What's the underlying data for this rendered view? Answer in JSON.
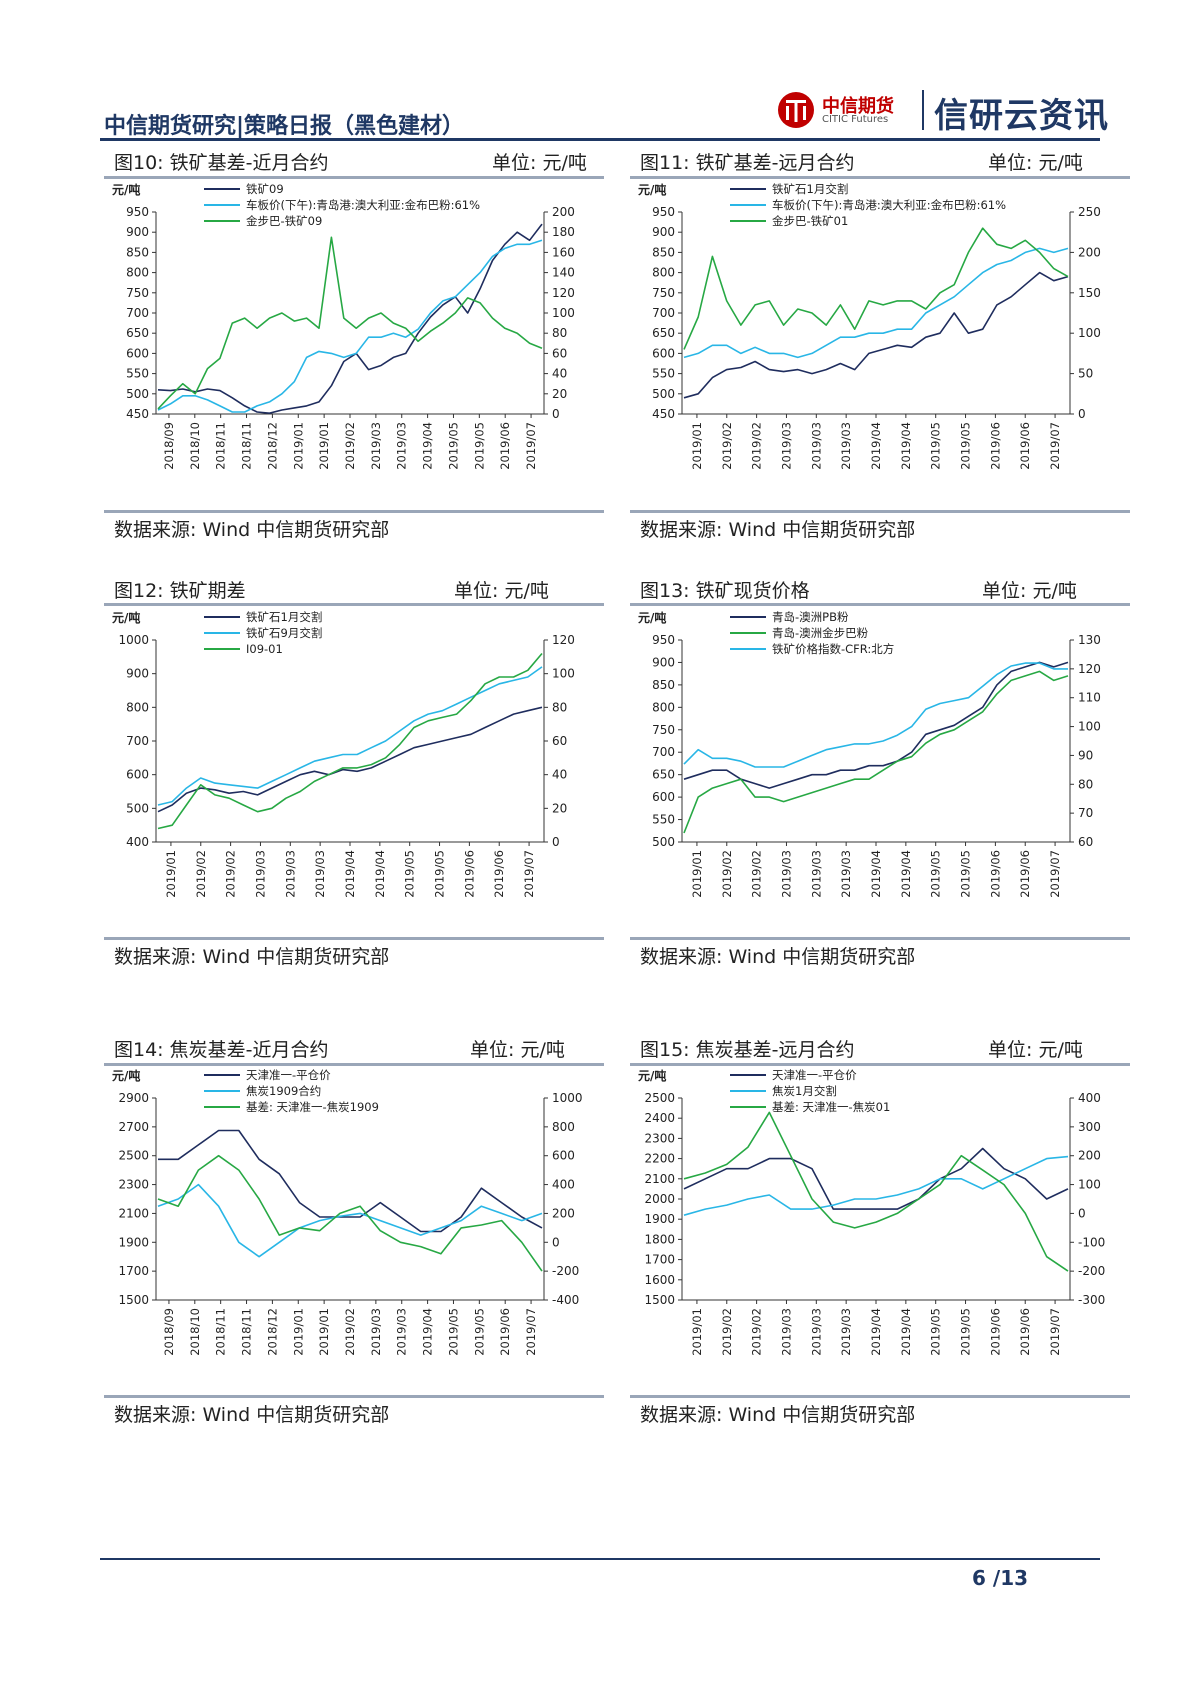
{
  "header": {
    "title": "中信期货研究|策略日报（黑色建材）",
    "logo_cn": "中信期货",
    "logo_en": "CITIC Futures",
    "brand": "信研云资讯"
  },
  "footer": {
    "page": "6",
    "total": "/13"
  },
  "figures": [
    {
      "title": "图10: 铁矿基差-近月合约",
      "unit": "单位: 元/吨",
      "source": "数据来源: Wind 中信期货研究部"
    },
    {
      "title": "图11: 铁矿基差-远月合约",
      "unit": "单位: 元/吨",
      "source": "数据来源: Wind 中信期货研究部"
    },
    {
      "title": "图12: 铁矿期差",
      "unit": "单位: 元/吨",
      "source": "数据来源: Wind 中信期货研究部"
    },
    {
      "title": "图13: 铁矿现货价格",
      "unit": "单位: 元/吨",
      "source": "数据来源: Wind 中信期货研究部"
    },
    {
      "title": "图14: 焦炭基差-近月合约",
      "unit": "单位: 元/吨",
      "source": "数据来源: Wind 中信期货研究部"
    },
    {
      "title": "图15: 焦炭基差-远月合约",
      "unit": "单位: 元/吨",
      "source": "数据来源: Wind 中信期货研究部"
    }
  ],
  "chart_data": [
    {
      "type": "line",
      "yunit": "元/吨",
      "ylim": [
        450,
        950
      ],
      "yticks": [
        450,
        500,
        550,
        600,
        650,
        700,
        750,
        800,
        850,
        900,
        950
      ],
      "y2lim": [
        0,
        200
      ],
      "y2ticks": [
        0,
        20,
        40,
        60,
        80,
        100,
        120,
        140,
        160,
        180,
        200
      ],
      "xticks": [
        "2018/09",
        "2018/10",
        "2018/11",
        "2018/11",
        "2018/12",
        "2019/01",
        "2019/01",
        "2019/02",
        "2019/03",
        "2019/03",
        "2019/04",
        "2019/05",
        "2019/05",
        "2019/06",
        "2019/07"
      ],
      "series": [
        {
          "name": "铁矿09",
          "color": "#1f2d5e",
          "axis": "left",
          "values": [
            510,
            508,
            512,
            505,
            512,
            508,
            490,
            470,
            455,
            452,
            460,
            465,
            470,
            480,
            520,
            580,
            600,
            560,
            570,
            590,
            600,
            650,
            690,
            720,
            740,
            700,
            760,
            830,
            870,
            900,
            880,
            920
          ]
        },
        {
          "name": "车板价(下午):青岛港:澳大利亚:金布巴粉:61%",
          "color": "#29b6e6",
          "axis": "left",
          "values": [
            460,
            475,
            495,
            495,
            485,
            470,
            455,
            455,
            470,
            480,
            500,
            530,
            590,
            605,
            600,
            590,
            600,
            640,
            640,
            650,
            640,
            660,
            700,
            730,
            740,
            770,
            800,
            840,
            860,
            870,
            870,
            880
          ]
        },
        {
          "name": "金步巴-铁矿09",
          "color": "#27a844",
          "axis": "right",
          "values": [
            5,
            18,
            30,
            20,
            45,
            55,
            90,
            95,
            85,
            95,
            100,
            92,
            95,
            85,
            175,
            95,
            85,
            95,
            100,
            90,
            85,
            72,
            82,
            90,
            100,
            115,
            110,
            95,
            85,
            80,
            70,
            65
          ]
        }
      ]
    },
    {
      "type": "line",
      "yunit": "元/吨",
      "ylim": [
        450,
        950
      ],
      "yticks": [
        450,
        500,
        550,
        600,
        650,
        700,
        750,
        800,
        850,
        900,
        950
      ],
      "y2lim": [
        0,
        250
      ],
      "y2ticks": [
        0,
        50,
        100,
        150,
        200,
        250
      ],
      "xticks": [
        "2019/01",
        "2019/02",
        "2019/02",
        "2019/03",
        "2019/03",
        "2019/03",
        "2019/04",
        "2019/04",
        "2019/05",
        "2019/05",
        "2019/06",
        "2019/06",
        "2019/07"
      ],
      "series": [
        {
          "name": "铁矿石1月交割",
          "color": "#1f2d5e",
          "axis": "left",
          "values": [
            490,
            500,
            540,
            560,
            565,
            580,
            560,
            555,
            560,
            550,
            560,
            575,
            560,
            600,
            610,
            620,
            615,
            640,
            650,
            700,
            650,
            660,
            720,
            740,
            770,
            800,
            780,
            790
          ]
        },
        {
          "name": "车板价(下午):青岛港:澳大利亚:金布巴粉:61%",
          "color": "#29b6e6",
          "axis": "left",
          "values": [
            590,
            600,
            620,
            620,
            600,
            615,
            600,
            600,
            590,
            600,
            620,
            640,
            640,
            650,
            650,
            660,
            660,
            700,
            720,
            740,
            770,
            800,
            820,
            830,
            850,
            860,
            850,
            860
          ]
        },
        {
          "name": "金步巴-铁矿01",
          "color": "#27a844",
          "axis": "right",
          "values": [
            80,
            120,
            195,
            140,
            110,
            135,
            140,
            110,
            130,
            125,
            110,
            135,
            105,
            140,
            135,
            140,
            140,
            130,
            150,
            160,
            200,
            230,
            210,
            205,
            215,
            200,
            180,
            170
          ]
        }
      ]
    },
    {
      "type": "line",
      "yunit": "元/吨",
      "ylim": [
        400,
        1000
      ],
      "yticks": [
        400,
        500,
        600,
        700,
        800,
        900,
        1000
      ],
      "y2lim": [
        0,
        120
      ],
      "y2ticks": [
        0,
        20,
        40,
        60,
        80,
        100,
        120
      ],
      "xticks": [
        "2019/01",
        "2019/02",
        "2019/02",
        "2019/03",
        "2019/03",
        "2019/03",
        "2019/04",
        "2019/04",
        "2019/05",
        "2019/05",
        "2019/06",
        "2019/06",
        "2019/07"
      ],
      "series": [
        {
          "name": "铁矿石1月交割",
          "color": "#1f2d5e",
          "axis": "left",
          "values": [
            490,
            510,
            545,
            560,
            555,
            545,
            550,
            540,
            560,
            580,
            600,
            610,
            600,
            615,
            610,
            620,
            640,
            660,
            680,
            690,
            700,
            710,
            720,
            740,
            760,
            780,
            790,
            800
          ]
        },
        {
          "name": "铁矿石9月交割",
          "color": "#29b6e6",
          "axis": "left",
          "values": [
            510,
            520,
            560,
            590,
            575,
            570,
            565,
            560,
            580,
            600,
            620,
            640,
            650,
            660,
            660,
            680,
            700,
            730,
            760,
            780,
            790,
            810,
            830,
            850,
            870,
            880,
            890,
            920
          ]
        },
        {
          "name": "I09-01",
          "color": "#27a844",
          "axis": "right",
          "values": [
            8,
            10,
            22,
            34,
            28,
            26,
            22,
            18,
            20,
            26,
            30,
            36,
            40,
            44,
            44,
            46,
            50,
            58,
            68,
            72,
            74,
            76,
            84,
            94,
            98,
            98,
            102,
            112
          ]
        }
      ]
    },
    {
      "type": "line",
      "yunit": "元/吨",
      "ylim": [
        500,
        950
      ],
      "yticks": [
        500,
        550,
        600,
        650,
        700,
        750,
        800,
        850,
        900,
        950
      ],
      "y2lim": [
        60,
        130
      ],
      "y2ticks": [
        60,
        70,
        80,
        90,
        100,
        110,
        120,
        130
      ],
      "xticks": [
        "2019/01",
        "2019/02",
        "2019/02",
        "2019/03",
        "2019/03",
        "2019/03",
        "2019/04",
        "2019/04",
        "2019/05",
        "2019/05",
        "2019/06",
        "2019/06",
        "2019/07"
      ],
      "series": [
        {
          "name": "青岛-澳洲PB粉",
          "color": "#1f2d5e",
          "axis": "left",
          "values": [
            640,
            650,
            660,
            660,
            640,
            630,
            620,
            630,
            640,
            650,
            650,
            660,
            660,
            670,
            670,
            680,
            700,
            740,
            750,
            760,
            780,
            800,
            850,
            880,
            890,
            900,
            890,
            900
          ]
        },
        {
          "name": "青岛-澳洲金步巴粉",
          "color": "#27a844",
          "axis": "left",
          "values": [
            520,
            600,
            620,
            630,
            640,
            600,
            600,
            590,
            600,
            610,
            620,
            630,
            640,
            640,
            660,
            680,
            690,
            720,
            740,
            750,
            770,
            790,
            830,
            860,
            870,
            880,
            860,
            870
          ]
        },
        {
          "name": "铁矿价格指数-CFR:北方",
          "color": "#29b6e6",
          "axis": "right",
          "values": [
            87,
            92,
            89,
            89,
            88,
            86,
            86,
            86,
            88,
            90,
            92,
            93,
            94,
            94,
            95,
            97,
            100,
            106,
            108,
            109,
            110,
            114,
            118,
            121,
            122,
            122,
            120,
            120
          ]
        }
      ]
    },
    {
      "type": "line",
      "yunit": "元/吨",
      "ylim": [
        1500,
        2900
      ],
      "yticks": [
        1500,
        1700,
        1900,
        2100,
        2300,
        2500,
        2700,
        2900
      ],
      "y2lim": [
        -400,
        1000
      ],
      "y2ticks": [
        -400,
        -200,
        0,
        200,
        400,
        600,
        800,
        1000
      ],
      "xticks": [
        "2018/09",
        "2018/10",
        "2018/11",
        "2018/11",
        "2018/12",
        "2019/01",
        "2019/01",
        "2019/02",
        "2019/03",
        "2019/03",
        "2019/04",
        "2019/05",
        "2019/05",
        "2019/06",
        "2019/07"
      ],
      "series": [
        {
          "name": "天津准一-平仓价",
          "color": "#1f2d5e",
          "axis": "left",
          "values": [
            2475,
            2475,
            2575,
            2675,
            2675,
            2475,
            2375,
            2175,
            2075,
            2075,
            2075,
            2175,
            2075,
            1975,
            1975,
            2075,
            2275,
            2175,
            2075,
            2000
          ]
        },
        {
          "name": "焦炭1909合约",
          "color": "#29b6e6",
          "axis": "left",
          "values": [
            2150,
            2200,
            2300,
            2150,
            1900,
            1800,
            1900,
            2000,
            2050,
            2080,
            2100,
            2050,
            2000,
            1950,
            2000,
            2050,
            2150,
            2100,
            2050,
            2100
          ]
        },
        {
          "name": "基差: 天津准一-焦炭1909",
          "color": "#27a844",
          "axis": "right",
          "values": [
            300,
            250,
            500,
            600,
            500,
            300,
            50,
            100,
            80,
            200,
            250,
            80,
            0,
            -30,
            -80,
            100,
            120,
            150,
            0,
            -200
          ]
        }
      ]
    },
    {
      "type": "line",
      "yunit": "元/吨",
      "ylim": [
        1500,
        2500
      ],
      "yticks": [
        1500,
        1600,
        1700,
        1800,
        1900,
        2000,
        2100,
        2200,
        2300,
        2400,
        2500
      ],
      "y2lim": [
        -300,
        400
      ],
      "y2ticks": [
        -300,
        -200,
        -100,
        0,
        100,
        200,
        300,
        400
      ],
      "xticks": [
        "2019/01",
        "2019/02",
        "2019/02",
        "2019/03",
        "2019/03",
        "2019/03",
        "2019/04",
        "2019/04",
        "2019/05",
        "2019/05",
        "2019/06",
        "2019/06",
        "2019/07"
      ],
      "series": [
        {
          "name": "天津准一-平仓价",
          "color": "#1f2d5e",
          "axis": "left",
          "values": [
            2050,
            2100,
            2150,
            2150,
            2200,
            2200,
            2150,
            1950,
            1950,
            1950,
            1950,
            2000,
            2100,
            2150,
            2250,
            2150,
            2100,
            2000,
            2050
          ]
        },
        {
          "name": "焦炭1月交割",
          "color": "#29b6e6",
          "axis": "left",
          "values": [
            1920,
            1950,
            1970,
            2000,
            2020,
            1950,
            1950,
            1970,
            2000,
            2000,
            2020,
            2050,
            2100,
            2100,
            2050,
            2100,
            2150,
            2200,
            2210
          ]
        },
        {
          "name": "基差: 天津准一-焦炭01",
          "color": "#27a844",
          "axis": "right",
          "values": [
            120,
            140,
            170,
            230,
            350,
            200,
            50,
            -30,
            -50,
            -30,
            0,
            50,
            100,
            200,
            150,
            100,
            0,
            -150,
            -200
          ]
        }
      ]
    }
  ]
}
